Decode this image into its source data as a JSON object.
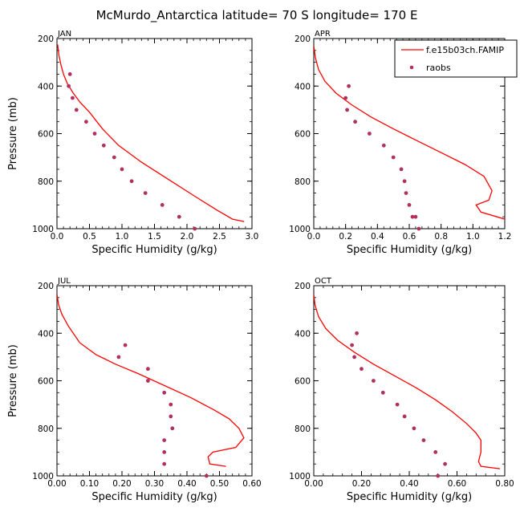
{
  "title": "McMurdo_Antarctica  latitude= 70 S longitude= 170 E",
  "colors": {
    "model": "#ff0000",
    "raobs": "#b03060",
    "axis": "#000000"
  },
  "legend": {
    "model_label": "f.e15b03ch.FAMIP",
    "raobs_label": "raobs",
    "placement": "top-right of APR panel"
  },
  "chart_data": [
    {
      "type": "line",
      "month": "JAN",
      "xlabel": "Specific Humidity (g/kg)",
      "ylabel": "Pressure (mb)",
      "xlim": [
        0,
        3.0
      ],
      "ylim": [
        200,
        1000
      ],
      "y_inverted": true,
      "xticks": [
        0.0,
        0.5,
        1.0,
        1.5,
        2.0,
        2.5,
        3.0
      ],
      "xtick_labels": [
        "0.0",
        "0.5",
        "1.0",
        "1.5",
        "2.0",
        "2.5",
        "3.0"
      ],
      "yticks": [
        200,
        400,
        600,
        800,
        1000
      ],
      "ytick_labels": [
        "200",
        "400",
        "600",
        "800",
        "1000"
      ],
      "series": [
        {
          "name": "f.e15b03ch.FAMIP",
          "kind": "line",
          "x": [
            0.01,
            0.03,
            0.06,
            0.1,
            0.16,
            0.25,
            0.36,
            0.5,
            0.7,
            0.95,
            1.3,
            1.7,
            2.1,
            2.45,
            2.7,
            2.88
          ],
          "y": [
            225,
            270,
            310,
            350,
            390,
            430,
            470,
            510,
            580,
            650,
            720,
            790,
            860,
            920,
            960,
            970
          ]
        },
        {
          "name": "raobs",
          "kind": "points",
          "x": [
            0.2,
            0.18,
            0.24,
            0.3,
            0.45,
            0.58,
            0.72,
            0.88,
            1.0,
            1.15,
            1.36,
            1.62,
            1.88,
            2.12
          ],
          "y": [
            350,
            400,
            450,
            500,
            550,
            600,
            650,
            700,
            750,
            800,
            850,
            900,
            950,
            1000
          ]
        }
      ]
    },
    {
      "type": "line",
      "month": "APR",
      "xlabel": "Specific Humidity (g/kg)",
      "ylabel": "",
      "xlim": [
        0,
        1.2
      ],
      "ylim": [
        200,
        1000
      ],
      "y_inverted": true,
      "xticks": [
        0.0,
        0.2,
        0.4,
        0.6,
        0.8,
        1.0,
        1.2
      ],
      "xtick_labels": [
        "0.0",
        "0.2",
        "0.4",
        "0.6",
        "0.8",
        "1.0",
        "1.2"
      ],
      "yticks": [
        200,
        400,
        600,
        800,
        1000
      ],
      "ytick_labels": [
        "200",
        "400",
        "600",
        "800",
        "1000"
      ],
      "series": [
        {
          "name": "f.e15b03ch.FAMIP",
          "kind": "line",
          "x": [
            0.0,
            0.01,
            0.03,
            0.07,
            0.14,
            0.24,
            0.36,
            0.5,
            0.65,
            0.8,
            0.95,
            1.07,
            1.12,
            1.1,
            1.02,
            1.05,
            1.2
          ],
          "y": [
            230,
            280,
            330,
            380,
            430,
            480,
            530,
            580,
            630,
            680,
            730,
            780,
            840,
            880,
            900,
            930,
            960
          ]
        },
        {
          "name": "raobs",
          "kind": "points",
          "x": [
            0.22,
            0.2,
            0.21,
            0.26,
            0.35,
            0.44,
            0.5,
            0.55,
            0.57,
            0.58,
            0.6,
            0.62,
            0.64,
            0.66
          ],
          "y": [
            400,
            450,
            500,
            550,
            600,
            650,
            700,
            750,
            800,
            850,
            900,
            950,
            950,
            1000
          ]
        }
      ]
    },
    {
      "type": "line",
      "month": "JUL",
      "xlabel": "Specific Humidity (g/kg)",
      "ylabel": "Pressure (mb)",
      "xlim": [
        0,
        0.6
      ],
      "ylim": [
        200,
        1000
      ],
      "y_inverted": true,
      "xticks": [
        0.0,
        0.1,
        0.2,
        0.3,
        0.4,
        0.5,
        0.6
      ],
      "xtick_labels": [
        "0.00",
        "0.10",
        "0.20",
        "0.30",
        "0.40",
        "0.50",
        "0.60"
      ],
      "yticks": [
        200,
        400,
        600,
        800,
        1000
      ],
      "ytick_labels": [
        "200",
        "400",
        "600",
        "800",
        "1000"
      ],
      "series": [
        {
          "name": "f.e15b03ch.FAMIP",
          "kind": "line",
          "x": [
            0.0,
            0.005,
            0.015,
            0.035,
            0.07,
            0.12,
            0.18,
            0.25,
            0.33,
            0.41,
            0.48,
            0.53,
            0.56,
            0.575,
            0.55,
            0.48,
            0.465,
            0.47,
            0.52
          ],
          "y": [
            235,
            280,
            320,
            370,
            440,
            490,
            530,
            570,
            620,
            670,
            720,
            760,
            800,
            840,
            880,
            900,
            920,
            950,
            960
          ]
        },
        {
          "name": "raobs",
          "kind": "points",
          "x": [
            0.21,
            0.19,
            0.28,
            0.28,
            0.33,
            0.35,
            0.35,
            0.355,
            0.33,
            0.33,
            0.33,
            0.46
          ],
          "y": [
            450,
            500,
            550,
            600,
            650,
            700,
            750,
            800,
            850,
            900,
            950,
            1000
          ]
        }
      ]
    },
    {
      "type": "line",
      "month": "OCT",
      "xlabel": "Specific Humidity (g/kg)",
      "ylabel": "",
      "xlim": [
        0,
        0.8
      ],
      "ylim": [
        200,
        1000
      ],
      "y_inverted": true,
      "xticks": [
        0.0,
        0.2,
        0.4,
        0.6,
        0.8
      ],
      "xtick_labels": [
        "0.00",
        "0.20",
        "0.40",
        "0.60",
        "0.80"
      ],
      "yticks": [
        200,
        400,
        600,
        800,
        1000
      ],
      "ytick_labels": [
        "200",
        "400",
        "600",
        "800",
        "1000"
      ],
      "series": [
        {
          "name": "f.e15b03ch.FAMIP",
          "kind": "line",
          "x": [
            0.0,
            0.005,
            0.02,
            0.05,
            0.1,
            0.17,
            0.25,
            0.34,
            0.43,
            0.51,
            0.58,
            0.64,
            0.68,
            0.7,
            0.7,
            0.69,
            0.7,
            0.78
          ],
          "y": [
            235,
            280,
            330,
            380,
            430,
            480,
            530,
            580,
            630,
            680,
            730,
            780,
            820,
            850,
            900,
            940,
            960,
            970
          ]
        },
        {
          "name": "raobs",
          "kind": "points",
          "x": [
            0.18,
            0.16,
            0.17,
            0.2,
            0.25,
            0.29,
            0.35,
            0.38,
            0.42,
            0.46,
            0.51,
            0.55,
            0.52
          ],
          "y": [
            400,
            450,
            500,
            550,
            600,
            650,
            700,
            750,
            800,
            850,
            900,
            950,
            1000
          ]
        }
      ]
    }
  ]
}
